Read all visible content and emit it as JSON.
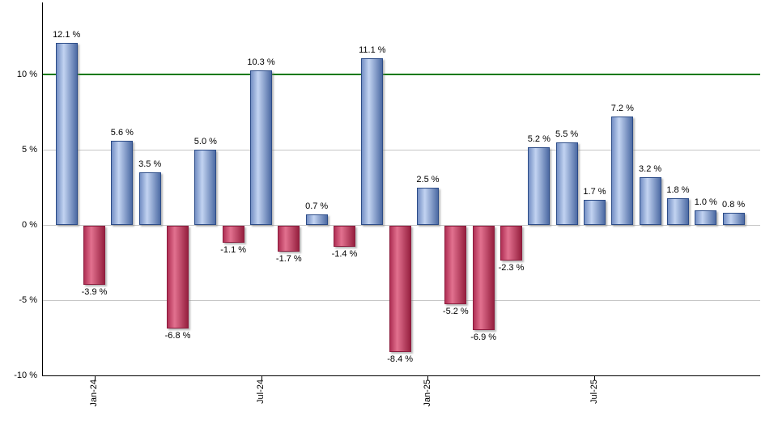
{
  "chart_data": {
    "type": "bar",
    "title": "",
    "subtitle": "",
    "unit": "%",
    "value_label_format": "{value} %",
    "values": [
      12.1,
      -3.9,
      5.6,
      3.5,
      -6.8,
      5.0,
      -1.1,
      10.3,
      -1.7,
      0.7,
      -1.4,
      11.1,
      -8.4,
      2.5,
      -5.2,
      -6.9,
      -2.3,
      5.2,
      5.5,
      1.7,
      7.2,
      3.2,
      1.8,
      1.0,
      0.8
    ],
    "x_ticks": [
      {
        "bar_index": 1,
        "label": "Jan-24"
      },
      {
        "bar_index": 7,
        "label": "Jul-24"
      },
      {
        "bar_index": 13,
        "label": "Jan-25"
      },
      {
        "bar_index": 19,
        "label": "Jul-25"
      }
    ],
    "y_ticks": [
      {
        "value": 10,
        "label": "10 %"
      },
      {
        "value": 5,
        "label": "5 %"
      },
      {
        "value": 0,
        "label": "0 %"
      },
      {
        "value": -5,
        "label": "-5 %"
      },
      {
        "value": -10,
        "label": "-10 %"
      }
    ],
    "ylim": [
      -10,
      14.8
    ],
    "benchmark_line": {
      "value": 10,
      "color": "#0c790c"
    },
    "grid": "horizontal",
    "legend": "none",
    "colors": {
      "positive_bar_edge_left": "#748fc4",
      "positive_bar_light": "#c2d3f1",
      "positive_bar_edge_right": "#4d6ba4",
      "positive_bar_border": "#2c4c88",
      "negative_bar_edge_left": "#b03055",
      "negative_bar_light": "#e2718f",
      "negative_bar_edge_right": "#96203f",
      "negative_bar_border": "#8c1c3e",
      "gridline": "#c6c6c6",
      "axis": "#000000",
      "label_text": "#000000",
      "background": "#ffffff"
    }
  }
}
